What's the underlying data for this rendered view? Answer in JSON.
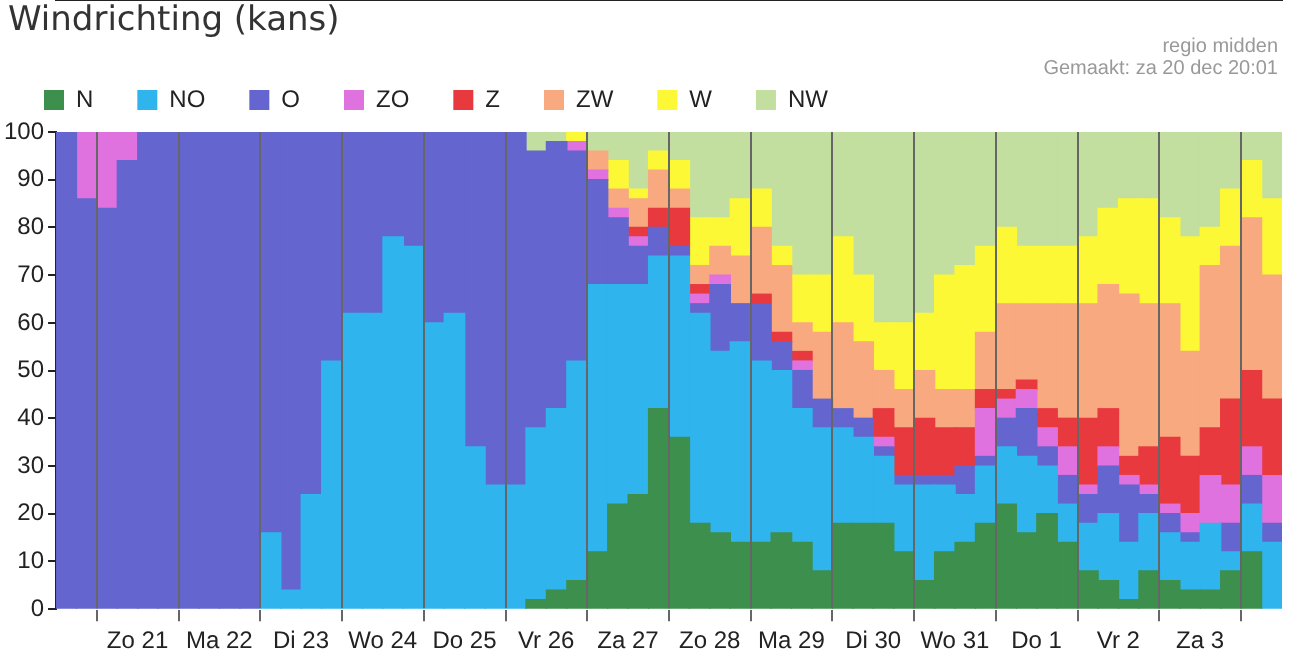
{
  "chart_data": {
    "type": "bar",
    "title": "Windrichting (kans)",
    "annotations": [
      "regio midden",
      "Gemaakt: za 20 dec 20:01"
    ],
    "categories": [
      null,
      null,
      null,
      "Zo 21",
      null,
      null,
      null,
      "Ma 22",
      null,
      null,
      null,
      "Di 23",
      null,
      null,
      null,
      "Wo 24",
      null,
      null,
      null,
      "Do 25",
      null,
      null,
      null,
      "Vr 26",
      null,
      null,
      null,
      "Za 27",
      null,
      null,
      null,
      "Zo 28",
      null,
      null,
      null,
      "Ma 29",
      null,
      null,
      null,
      "Di 30",
      null,
      null,
      null,
      "Wo 31",
      null,
      null,
      null,
      "Do 1",
      null,
      null,
      null,
      "Vr 2",
      null,
      null,
      null,
      "Za 3",
      null,
      null,
      null,
      null
    ],
    "stacked": true,
    "ylim": [
      0,
      100
    ],
    "yticks": [
      0,
      10,
      20,
      30,
      40,
      50,
      60,
      70,
      80,
      90,
      100
    ],
    "grid": "x",
    "legend": "top left",
    "series": [
      {
        "name": "N",
        "color": "#3d8f4d",
        "values": [
          null,
          null,
          null,
          null,
          null,
          null,
          null,
          null,
          null,
          null,
          null,
          null,
          null,
          null,
          null,
          null,
          null,
          null,
          null,
          null,
          null,
          null,
          null,
          2,
          4,
          6,
          12,
          22,
          24,
          42,
          36,
          18,
          16,
          14,
          14,
          16,
          14,
          8,
          18,
          18,
          18,
          12,
          6,
          12,
          14,
          18,
          22,
          16,
          20,
          14,
          8,
          6,
          2,
          8,
          6,
          4,
          4,
          8,
          12,
          null
        ]
      },
      {
        "name": "NO",
        "color": "#2fb4ee",
        "values": [
          null,
          null,
          null,
          null,
          null,
          null,
          null,
          null,
          null,
          null,
          16,
          4,
          24,
          52,
          62,
          62,
          78,
          76,
          60,
          62,
          34,
          26,
          26,
          36,
          38,
          46,
          56,
          46,
          44,
          32,
          38,
          44,
          38,
          42,
          38,
          34,
          28,
          30,
          20,
          18,
          14,
          14,
          20,
          14,
          10,
          12,
          12,
          16,
          10,
          8,
          10,
          14,
          12,
          12,
          10,
          10,
          14,
          4,
          10,
          14
        ]
      },
      {
        "name": "O",
        "color": "#6565cf",
        "values": [
          100,
          86,
          84,
          94,
          100,
          100,
          100,
          100,
          100,
          100,
          84,
          96,
          76,
          48,
          38,
          38,
          22,
          24,
          40,
          38,
          66,
          74,
          74,
          58,
          56,
          44,
          22,
          14,
          8,
          6,
          2,
          2,
          14,
          8,
          12,
          6,
          8,
          6,
          4,
          4,
          2,
          2,
          2,
          2,
          6,
          2,
          6,
          10,
          4,
          6,
          6,
          10,
          12,
          4,
          4,
          2,
          null,
          6,
          6,
          4
        ]
      },
      {
        "name": "ZO",
        "color": "#df72de",
        "values": [
          null,
          14,
          16,
          6,
          null,
          null,
          null,
          null,
          null,
          null,
          null,
          null,
          null,
          null,
          null,
          null,
          null,
          null,
          null,
          null,
          null,
          null,
          null,
          null,
          null,
          2,
          2,
          2,
          2,
          null,
          null,
          2,
          2,
          null,
          null,
          null,
          2,
          null,
          null,
          null,
          2,
          null,
          null,
          null,
          null,
          10,
          4,
          4,
          4,
          6,
          2,
          4,
          2,
          2,
          2,
          4,
          10,
          8,
          6,
          10
        ]
      },
      {
        "name": "Z",
        "color": "#e8393e",
        "values": [
          null,
          null,
          null,
          null,
          null,
          null,
          null,
          null,
          null,
          null,
          null,
          null,
          null,
          null,
          null,
          null,
          null,
          null,
          null,
          null,
          null,
          null,
          null,
          null,
          null,
          null,
          null,
          null,
          2,
          4,
          8,
          2,
          null,
          null,
          2,
          2,
          2,
          null,
          null,
          null,
          6,
          10,
          12,
          10,
          8,
          4,
          2,
          2,
          4,
          6,
          14,
          8,
          4,
          8,
          14,
          12,
          10,
          18,
          16,
          16
        ]
      },
      {
        "name": "ZW",
        "color": "#f8a97f",
        "values": [
          null,
          null,
          null,
          null,
          null,
          null,
          null,
          null,
          null,
          null,
          null,
          null,
          null,
          null,
          null,
          null,
          null,
          null,
          null,
          null,
          null,
          null,
          null,
          null,
          null,
          null,
          4,
          4,
          6,
          8,
          4,
          4,
          6,
          10,
          14,
          14,
          6,
          14,
          18,
          16,
          8,
          8,
          10,
          8,
          8,
          12,
          18,
          16,
          22,
          24,
          24,
          26,
          34,
          30,
          28,
          22,
          34,
          32,
          32,
          26
        ]
      },
      {
        "name": "W",
        "color": "#fdf835",
        "values": [
          null,
          null,
          null,
          null,
          null,
          null,
          null,
          null,
          null,
          null,
          null,
          null,
          null,
          null,
          null,
          null,
          null,
          null,
          null,
          null,
          null,
          null,
          null,
          null,
          null,
          2,
          null,
          6,
          2,
          4,
          6,
          10,
          6,
          12,
          8,
          4,
          10,
          12,
          18,
          14,
          10,
          14,
          12,
          24,
          26,
          18,
          16,
          12,
          12,
          12,
          14,
          16,
          20,
          22,
          18,
          24,
          8,
          12,
          12,
          16
        ]
      },
      {
        "name": "NW",
        "color": "#c2df9f",
        "values": [
          null,
          null,
          null,
          null,
          null,
          null,
          null,
          null,
          null,
          null,
          null,
          null,
          null,
          null,
          null,
          null,
          null,
          null,
          null,
          null,
          null,
          null,
          null,
          4,
          2,
          null,
          4,
          6,
          12,
          4,
          6,
          18,
          18,
          14,
          12,
          24,
          30,
          30,
          22,
          30,
          40,
          40,
          38,
          30,
          28,
          24,
          20,
          24,
          24,
          24,
          22,
          16,
          14,
          14,
          18,
          22,
          20,
          12,
          6,
          14
        ]
      }
    ]
  }
}
